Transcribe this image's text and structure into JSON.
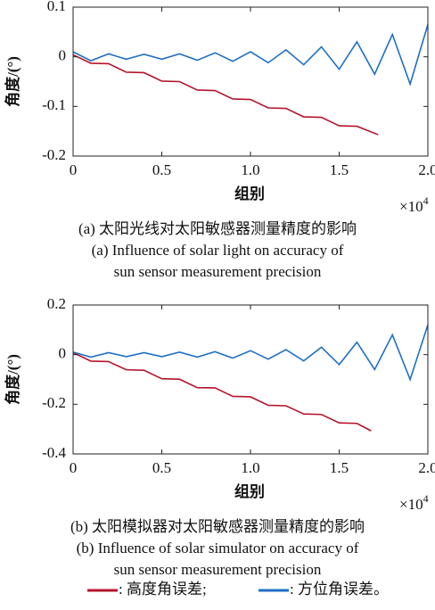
{
  "chart_data": [
    {
      "type": "line",
      "y_label": "角度/(°)",
      "x_label": "组别",
      "x_multiplier": {
        "base": "×10",
        "exponent": "4"
      },
      "xlim": [
        0,
        2
      ],
      "xticks": [
        0,
        0.5,
        {
          "value": 1,
          "label": "1.0"
        },
        1.5,
        {
          "value": 2,
          "label": "2.0"
        }
      ],
      "ylim": [
        -0.2,
        0.1
      ],
      "yticks": [
        0.1,
        0,
        -0.1,
        -0.2
      ],
      "caption_cn": "(a) 太阳光线对太阳敏感器测量精度的影响",
      "caption_en": [
        "(a) Influence of solar light on accuracy of",
        "sun sensor measurement precision"
      ],
      "series": [
        {
          "color": "#b5142b",
          "x": [
            0,
            0.1,
            0.2,
            0.3,
            0.4,
            0.5,
            0.6,
            0.7,
            0.8,
            0.9,
            1.0,
            1.1,
            1.2,
            1.3,
            1.4,
            1.5,
            1.6,
            1.72
          ],
          "values": [
            0.004,
            -0.013,
            -0.014,
            -0.031,
            -0.032,
            -0.049,
            -0.05,
            -0.067,
            -0.068,
            -0.085,
            -0.086,
            -0.103,
            -0.104,
            -0.121,
            -0.122,
            -0.139,
            -0.14,
            -0.157
          ]
        },
        {
          "color": "#1f6fc5",
          "x": [
            0,
            0.1,
            0.2,
            0.3,
            0.4,
            0.5,
            0.6,
            0.7,
            0.8,
            0.9,
            1.0,
            1.1,
            1.2,
            1.3,
            1.4,
            1.5,
            1.6,
            1.7,
            1.8,
            1.9,
            2.0
          ],
          "values": [
            0.01,
            -0.008,
            0.006,
            -0.005,
            0.005,
            -0.005,
            0.006,
            -0.007,
            0.008,
            -0.009,
            0.01,
            -0.012,
            0.014,
            -0.016,
            0.02,
            -0.025,
            0.03,
            -0.035,
            0.045,
            -0.055,
            0.065
          ]
        }
      ]
    },
    {
      "type": "line",
      "y_label": "角度/(°)",
      "x_label": "组别",
      "x_multiplier": {
        "base": "×10",
        "exponent": "4"
      },
      "xlim": [
        0,
        2
      ],
      "xticks": [
        0,
        0.5,
        {
          "value": 1,
          "label": "1.0"
        },
        1.5,
        {
          "value": 2,
          "label": "2.0"
        }
      ],
      "ylim": [
        -0.4,
        0.2
      ],
      "yticks": [
        0.2,
        0,
        -0.2,
        -0.4
      ],
      "caption_cn": "(b) 太阳模拟器对太阳敏感器测量精度的影响",
      "caption_en": [
        "(b) Influence of solar simulator on accuracy of",
        "sun sensor measurement precision"
      ],
      "series": [
        {
          "color": "#b5142b",
          "x": [
            0,
            0.1,
            0.2,
            0.3,
            0.4,
            0.5,
            0.6,
            0.7,
            0.8,
            0.9,
            1.0,
            1.1,
            1.2,
            1.3,
            1.4,
            1.5,
            1.6,
            1.68
          ],
          "values": [
            0.008,
            -0.026,
            -0.028,
            -0.061,
            -0.063,
            -0.097,
            -0.099,
            -0.133,
            -0.134,
            -0.168,
            -0.17,
            -0.204,
            -0.206,
            -0.239,
            -0.241,
            -0.275,
            -0.277,
            -0.307
          ]
        },
        {
          "color": "#1f6fc5",
          "x": [
            0,
            0.1,
            0.2,
            0.3,
            0.4,
            0.5,
            0.6,
            0.7,
            0.8,
            0.9,
            1.0,
            1.1,
            1.2,
            1.3,
            1.4,
            1.5,
            1.6,
            1.7,
            1.8,
            1.9,
            2.0
          ],
          "values": [
            0.01,
            -0.01,
            0.008,
            -0.008,
            0.008,
            -0.008,
            0.01,
            -0.01,
            0.012,
            -0.014,
            0.016,
            -0.018,
            0.02,
            -0.025,
            0.03,
            -0.04,
            0.05,
            -0.06,
            0.08,
            -0.1,
            0.12
          ]
        }
      ]
    }
  ],
  "legend": [
    {
      "color": "#b5142b",
      "label": ": 高度角误差;"
    },
    {
      "color": "#1f6fc5",
      "label": ": 方位角误差。"
    }
  ]
}
